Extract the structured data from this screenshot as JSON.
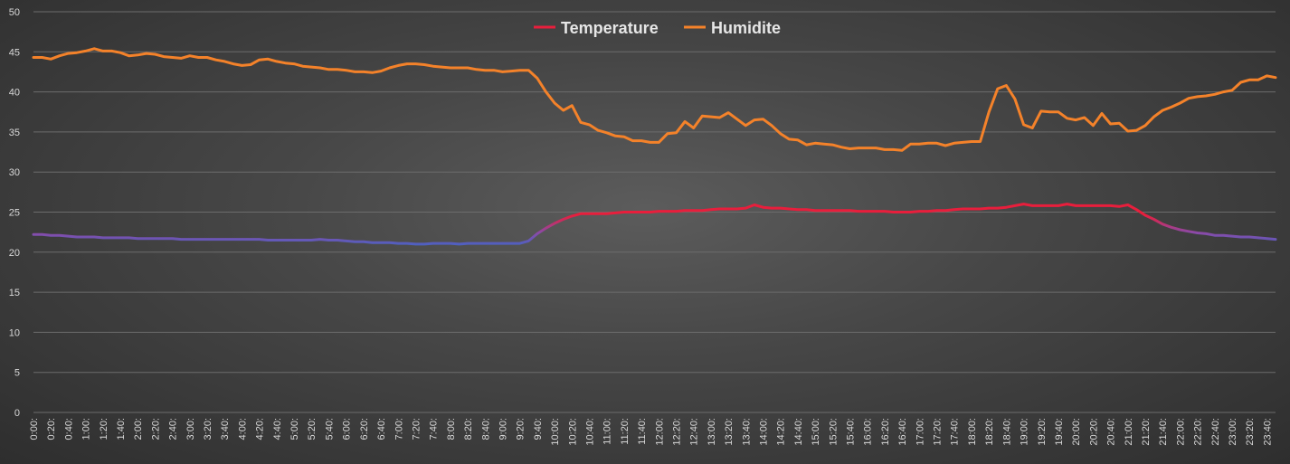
{
  "chart_data": {
    "type": "line",
    "title": "",
    "xlabel": "",
    "ylabel": "",
    "ylim": [
      0,
      50
    ],
    "yticks": [
      0,
      5,
      10,
      15,
      20,
      25,
      30,
      35,
      40,
      45,
      50
    ],
    "grid": true,
    "legend_position": "top-center",
    "x": [
      "0:00",
      "0:10",
      "0:20",
      "0:30",
      "0:40",
      "0:50",
      "1:00",
      "1:10",
      "1:20",
      "1:30",
      "1:40",
      "1:50",
      "2:00",
      "2:10",
      "2:20",
      "2:30",
      "2:40",
      "2:50",
      "3:00",
      "3:10",
      "3:20",
      "3:30",
      "3:40",
      "3:50",
      "4:00",
      "4:10",
      "4:20",
      "4:30",
      "4:40",
      "4:50",
      "5:00",
      "5:10",
      "5:20",
      "5:30",
      "5:40",
      "5:50",
      "6:00",
      "6:10",
      "6:20",
      "6:30",
      "6:40",
      "6:50",
      "7:00",
      "7:10",
      "7:20",
      "7:30",
      "7:40",
      "7:50",
      "8:00",
      "8:10",
      "8:20",
      "8:30",
      "8:40",
      "8:50",
      "9:00",
      "9:10",
      "9:20",
      "9:30",
      "9:40",
      "9:50",
      "10:00",
      "10:10",
      "10:20",
      "10:30",
      "10:40",
      "10:50",
      "11:00",
      "11:10",
      "11:20",
      "11:30",
      "11:40",
      "11:50",
      "12:00",
      "12:10",
      "12:20",
      "12:30",
      "12:40",
      "12:50",
      "13:00",
      "13:10",
      "13:20",
      "13:30",
      "13:40",
      "13:50",
      "14:00",
      "14:10",
      "14:20",
      "14:30",
      "14:40",
      "14:50",
      "15:00",
      "15:10",
      "15:20",
      "15:30",
      "15:40",
      "15:50",
      "16:00",
      "16:10",
      "16:20",
      "16:30",
      "16:40",
      "16:50",
      "17:00",
      "17:10",
      "17:20",
      "17:30",
      "17:40",
      "17:50",
      "18:00",
      "18:10",
      "18:20",
      "18:30",
      "18:40",
      "18:50",
      "19:00",
      "19:10",
      "19:20",
      "19:30",
      "19:40",
      "19:50",
      "20:00",
      "20:10",
      "20:20",
      "20:30",
      "20:40",
      "20:50",
      "21:00",
      "21:10",
      "21:20",
      "21:30",
      "21:40",
      "21:50",
      "22:00",
      "22:10",
      "22:20",
      "22:30",
      "22:40",
      "22:50",
      "23:00",
      "23:10",
      "23:20",
      "23:30",
      "23:40",
      "23:50"
    ],
    "tick_labels": [
      "0:00:",
      "0:20:",
      "0:40:",
      "1:00:",
      "1:20:",
      "1:40:",
      "2:00:",
      "2:20:",
      "2:40:",
      "3:00:",
      "3:20:",
      "3:40:",
      "4:00:",
      "4:20:",
      "4:40:",
      "5:00:",
      "5:20:",
      "5:40:",
      "6:00:",
      "6:20:",
      "6:40:",
      "7:00:",
      "7:20:",
      "7:40:",
      "8:00:",
      "8:20:",
      "8:40:",
      "9:00:",
      "9:20:",
      "9:40:",
      "10:00:",
      "10:20:",
      "10:40:",
      "11:00:",
      "11:20:",
      "11:40:",
      "12:00:",
      "12:20:",
      "12:40:",
      "13:00:",
      "13:20:",
      "13:40:",
      "14:00:",
      "14:20:",
      "14:40:",
      "15:00:",
      "15:20:",
      "15:40:",
      "16:00:",
      "16:20:",
      "16:40:",
      "17:00:",
      "17:20:",
      "17:40:",
      "18:00:",
      "18:20:",
      "18:40:",
      "19:00:",
      "19:20:",
      "19:40:",
      "20:00:",
      "20:20:",
      "20:40:",
      "21:00:",
      "21:20:",
      "21:40:",
      "22:00:",
      "22:20:",
      "22:40:",
      "23:00:",
      "23:20:",
      "23:40:"
    ],
    "series": [
      {
        "name": "Temperature",
        "color_low": "#3a68c8",
        "color_mid": "#8a4aa8",
        "color_high": "#e81e3c",
        "values": [
          22.2,
          22.2,
          22.1,
          22.1,
          22.0,
          21.9,
          21.9,
          21.9,
          21.8,
          21.8,
          21.8,
          21.8,
          21.7,
          21.7,
          21.7,
          21.7,
          21.7,
          21.6,
          21.6,
          21.6,
          21.6,
          21.6,
          21.6,
          21.6,
          21.6,
          21.6,
          21.6,
          21.5,
          21.5,
          21.5,
          21.5,
          21.5,
          21.5,
          21.6,
          21.5,
          21.5,
          21.4,
          21.3,
          21.3,
          21.2,
          21.2,
          21.2,
          21.1,
          21.1,
          21.0,
          21.0,
          21.1,
          21.1,
          21.1,
          21.0,
          21.1,
          21.1,
          21.1,
          21.1,
          21.1,
          21.1,
          21.1,
          21.4,
          22.3,
          23.0,
          23.6,
          24.1,
          24.5,
          24.8,
          24.8,
          24.8,
          24.8,
          24.9,
          25.0,
          25.0,
          25.0,
          25.0,
          25.1,
          25.1,
          25.1,
          25.2,
          25.2,
          25.2,
          25.3,
          25.4,
          25.4,
          25.4,
          25.5,
          25.9,
          25.6,
          25.5,
          25.5,
          25.4,
          25.3,
          25.3,
          25.2,
          25.2,
          25.2,
          25.2,
          25.2,
          25.1,
          25.1,
          25.1,
          25.1,
          25.0,
          25.0,
          25.0,
          25.1,
          25.1,
          25.2,
          25.2,
          25.3,
          25.4,
          25.4,
          25.4,
          25.5,
          25.5,
          25.6,
          25.8,
          26.0,
          25.8,
          25.8,
          25.8,
          25.8,
          26.0,
          25.8,
          25.8,
          25.8,
          25.8,
          25.8,
          25.7,
          25.9,
          25.3,
          24.6,
          24.1,
          23.5,
          23.1,
          22.8,
          22.6,
          22.4,
          22.3,
          22.1,
          22.1,
          22.0,
          21.9,
          21.9,
          21.8,
          21.7,
          21.6
        ]
      },
      {
        "name": "Humidite",
        "color": "#f4822a",
        "values": [
          44.3,
          44.3,
          44.1,
          44.5,
          44.8,
          44.9,
          45.1,
          45.4,
          45.1,
          45.1,
          44.9,
          44.5,
          44.6,
          44.8,
          44.7,
          44.4,
          44.3,
          44.2,
          44.5,
          44.3,
          44.3,
          44.0,
          43.8,
          43.5,
          43.3,
          43.4,
          44.0,
          44.1,
          43.8,
          43.6,
          43.5,
          43.2,
          43.1,
          43.0,
          42.8,
          42.8,
          42.7,
          42.5,
          42.5,
          42.4,
          42.6,
          43.0,
          43.3,
          43.5,
          43.5,
          43.4,
          43.2,
          43.1,
          43.0,
          43.0,
          43.0,
          42.8,
          42.7,
          42.7,
          42.5,
          42.6,
          42.7,
          42.7,
          41.7,
          40.0,
          38.6,
          37.7,
          38.3,
          36.2,
          35.9,
          35.2,
          34.9,
          34.5,
          34.4,
          33.9,
          33.9,
          33.7,
          33.7,
          34.8,
          34.9,
          36.3,
          35.5,
          37.0,
          36.9,
          36.8,
          37.4,
          36.6,
          35.8,
          36.5,
          36.6,
          35.8,
          34.8,
          34.1,
          34.0,
          33.4,
          33.6,
          33.5,
          33.4,
          33.1,
          32.9,
          33.0,
          33.0,
          33.0,
          32.8,
          32.8,
          32.7,
          33.5,
          33.5,
          33.6,
          33.6,
          33.3,
          33.6,
          33.7,
          33.8,
          33.8,
          37.5,
          40.4,
          40.8,
          39.1,
          35.9,
          35.5,
          37.6,
          37.5,
          37.5,
          36.7,
          36.5,
          36.8,
          35.8,
          37.3,
          36.0,
          36.1,
          35.1,
          35.2,
          35.8,
          36.9,
          37.7,
          38.1,
          38.6,
          39.2,
          39.4,
          39.5,
          39.7,
          40.0,
          40.2,
          41.2,
          41.5,
          41.5,
          42.0,
          41.8
        ]
      }
    ]
  }
}
